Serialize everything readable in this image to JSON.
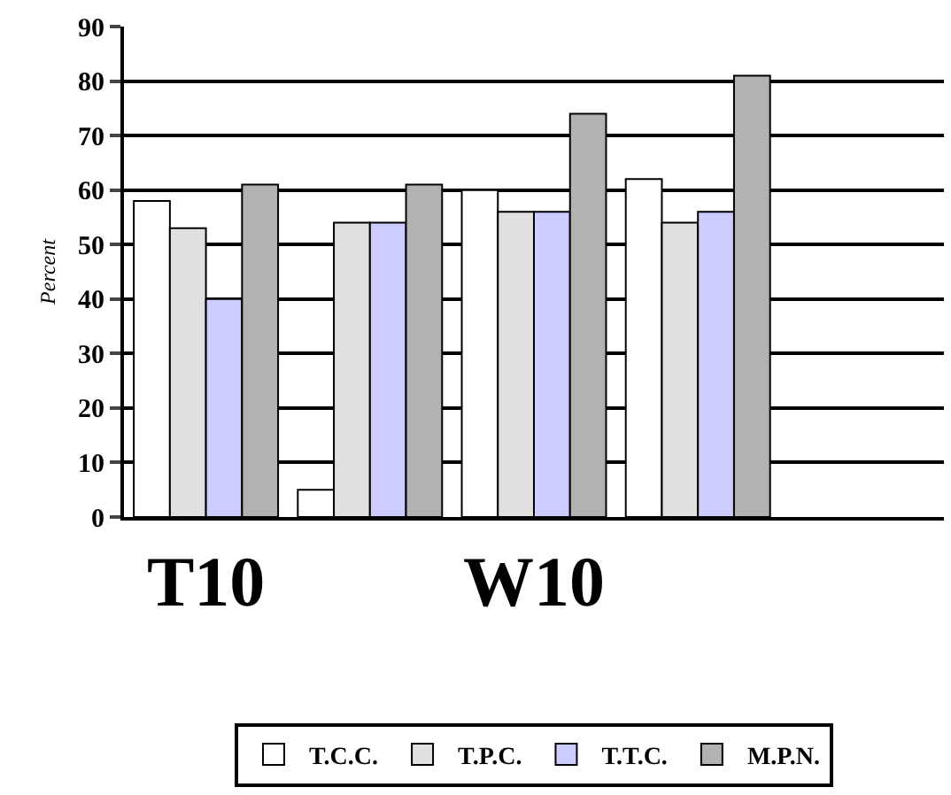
{
  "chart_data": {
    "type": "bar",
    "ylabel": "Percent",
    "categories": [
      "T10",
      null,
      "W10",
      null,
      null
    ],
    "series": [
      {
        "name": "T.C.C.",
        "color": "#ffffff",
        "values": [
          58,
          5,
          60,
          62,
          null
        ]
      },
      {
        "name": "T.P.C.",
        "color": "#e0e0e0",
        "values": [
          53,
          54,
          56,
          54,
          null
        ]
      },
      {
        "name": "T.T.C.",
        "color": "#ccccff",
        "values": [
          40,
          54,
          56,
          56,
          null
        ]
      },
      {
        "name": "M.P.N.",
        "color": "#b2b2b2",
        "values": [
          61,
          61,
          74,
          81,
          null
        ]
      }
    ],
    "ylim": [
      0,
      90
    ],
    "yticks": [
      0,
      10,
      20,
      30,
      40,
      50,
      60,
      70,
      80,
      90
    ],
    "grid": "y",
    "legend": "bottom"
  }
}
